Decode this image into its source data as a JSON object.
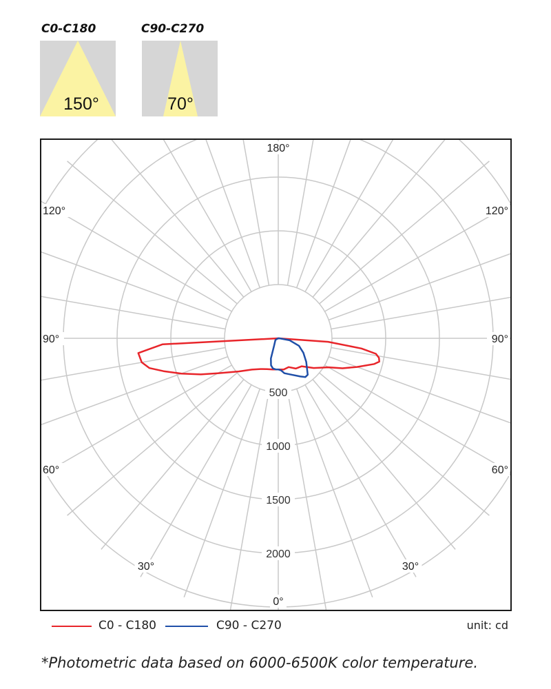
{
  "beam_angles": [
    {
      "label": "C0-C180",
      "angle_text": "150°",
      "angle": 150
    },
    {
      "label": "C90-C270",
      "angle_text": "70°",
      "angle": 70
    }
  ],
  "colors": {
    "c0_series": "#e8252a",
    "c90_series": "#1f4fa8",
    "grid": "#c8c8c8",
    "beam_fill": "#fbf3a3",
    "beam_bg": "#d6d6d6"
  },
  "chart_data": {
    "type": "polar",
    "unit_label": "unit: cd",
    "radial_ticks": [
      {
        "value": 500,
        "label": "500"
      },
      {
        "value": 1000,
        "label": "1000"
      },
      {
        "value": 1500,
        "label": "1500"
      },
      {
        "value": 2000,
        "label": "2000"
      }
    ],
    "rmax": 2500,
    "angle_labels": [
      {
        "text": "180°",
        "angle": 180,
        "side": "top"
      },
      {
        "text": "120°",
        "angle": 120,
        "side": "left"
      },
      {
        "text": "120°",
        "angle": 120,
        "side": "right"
      },
      {
        "text": "90°",
        "angle": 90,
        "side": "left"
      },
      {
        "text": "90°",
        "angle": 90,
        "side": "right"
      },
      {
        "text": "60°",
        "angle": 60,
        "side": "left"
      },
      {
        "text": "60°",
        "angle": 60,
        "side": "right"
      },
      {
        "text": "30°",
        "angle": 30,
        "side": "left"
      },
      {
        "text": "30°",
        "angle": 30,
        "side": "right"
      },
      {
        "text": "0°",
        "angle": 0,
        "side": "bottom"
      }
    ],
    "series": [
      {
        "name": "C0 - C180",
        "color": "#e8252a",
        "points": [
          [
            -90,
            0
          ],
          [
            -87,
            1080
          ],
          [
            -84,
            1310
          ],
          [
            -80,
            1290
          ],
          [
            -77,
            1230
          ],
          [
            -74,
            1110
          ],
          [
            -70,
            960
          ],
          [
            -65,
            795
          ],
          [
            -60,
            650
          ],
          [
            -50,
            480
          ],
          [
            -40,
            380
          ],
          [
            -30,
            330
          ],
          [
            -20,
            305
          ],
          [
            -10,
            295
          ],
          [
            0,
            290
          ],
          [
            10,
            295
          ],
          [
            20,
            285
          ],
          [
            30,
            325
          ],
          [
            40,
            340
          ],
          [
            50,
            430
          ],
          [
            60,
            540
          ],
          [
            65,
            660
          ],
          [
            70,
            780
          ],
          [
            75,
            925
          ],
          [
            77,
            965
          ],
          [
            79,
            955
          ],
          [
            81,
            920
          ],
          [
            83,
            780
          ],
          [
            86,
            465
          ],
          [
            90,
            0
          ]
        ]
      },
      {
        "name": "C90 - C270",
        "color": "#1f4fa8",
        "points": [
          [
            -90,
            0
          ],
          [
            -60,
            30
          ],
          [
            -30,
            75
          ],
          [
            -20,
            200
          ],
          [
            -15,
            260
          ],
          [
            -10,
            285
          ],
          [
            -5,
            290
          ],
          [
            0,
            290
          ],
          [
            5,
            300
          ],
          [
            10,
            330
          ],
          [
            20,
            360
          ],
          [
            30,
            410
          ],
          [
            35,
            440
          ],
          [
            39,
            436
          ],
          [
            50,
            340
          ],
          [
            60,
            270
          ],
          [
            70,
            205
          ],
          [
            80,
            108
          ],
          [
            88,
            15
          ],
          [
            90,
            0
          ]
        ]
      }
    ]
  },
  "legend": [
    {
      "label": "C0 - C180",
      "color": "#e8252a"
    },
    {
      "label": "C90 - C270",
      "color": "#1f4fa8"
    }
  ],
  "footnote": "*Photometric data based on 6000-6500K color temperature."
}
